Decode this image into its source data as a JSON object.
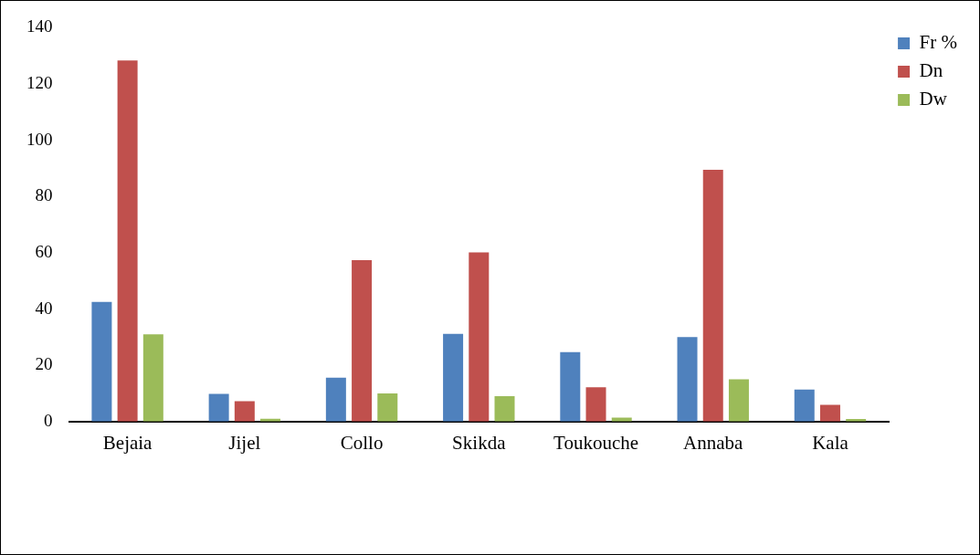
{
  "chart_data": {
    "type": "bar",
    "categories": [
      "Bejaia",
      "Jijel",
      "Collo",
      "Skikda",
      "Toukouche",
      "Annaba",
      "Kala"
    ],
    "series": [
      {
        "name": "Fr %",
        "color": "#4f81bd",
        "values": [
          42.5,
          9.8,
          15.6,
          31.2,
          24.7,
          30.0,
          11.4
        ]
      },
      {
        "name": "Dn",
        "color": "#c0504d",
        "values": [
          128.4,
          7.2,
          57.4,
          60.1,
          12.2,
          89.5,
          5.9
        ]
      },
      {
        "name": "Dw",
        "color": "#9bbb59",
        "values": [
          31.0,
          1.0,
          10.0,
          9.0,
          1.4,
          15.0,
          0.9
        ]
      }
    ],
    "ylim": [
      0,
      140
    ],
    "yticks": [
      0,
      20,
      40,
      60,
      80,
      100,
      120,
      140
    ],
    "grid": false,
    "legend": "top right"
  }
}
